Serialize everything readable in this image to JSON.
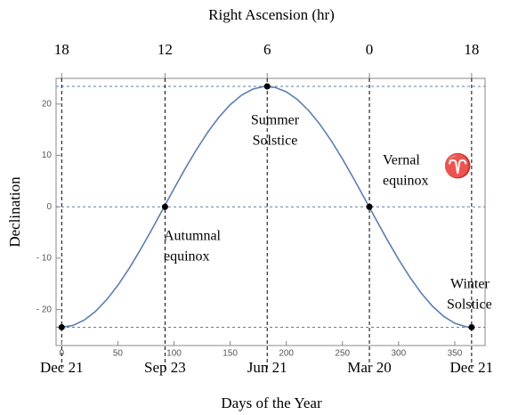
{
  "chart_data": {
    "type": "line",
    "title": "Right Ascension (hr)",
    "xlabel": "Days of the Year",
    "ylabel": "Declination",
    "xlim": [
      -5,
      377
    ],
    "ylim": [
      -27,
      25
    ],
    "xticks": [
      0,
      50,
      100,
      150,
      200,
      250,
      300,
      350
    ],
    "yticks": [
      {
        "value": -20,
        "label": "- 20"
      },
      {
        "value": -10,
        "label": "- 10"
      },
      0,
      10,
      20
    ],
    "x2ticks": [
      {
        "value": 0,
        "label": "18"
      },
      {
        "value": 92,
        "label": "12"
      },
      {
        "value": 183,
        "label": "6"
      },
      {
        "value": 274,
        "label": "0"
      },
      {
        "value": 365,
        "label": "18"
      }
    ],
    "date_ticks": [
      {
        "value": 0,
        "label": "Dec 21"
      },
      {
        "value": 92,
        "label": "Sep 23"
      },
      {
        "value": 183,
        "label": "Jun 21"
      },
      {
        "value": 274,
        "label": "Mar 20"
      },
      {
        "value": 365,
        "label": "Dec 21"
      }
    ],
    "hlines": [
      23.44,
      0,
      -23.44
    ],
    "series": [
      {
        "color": "#5a7fb5",
        "x": [
          0,
          10,
          20,
          30,
          40,
          50,
          60,
          70,
          80,
          90,
          100,
          110,
          120,
          130,
          140,
          150,
          160,
          170,
          180,
          190,
          200,
          210,
          220,
          230,
          240,
          250,
          260,
          270,
          280,
          290,
          300,
          310,
          320,
          330,
          340,
          350,
          360,
          365
        ],
        "values": [
          -23.44,
          -23.09,
          -22.06,
          -20.38,
          -18.09,
          -15.28,
          -12.01,
          -8.38,
          -4.51,
          -0.5,
          3.52,
          7.44,
          11.13,
          14.5,
          17.44,
          19.87,
          21.7,
          22.9,
          23.42,
          23.24,
          22.38,
          20.86,
          18.72,
          16.02,
          12.87,
          9.32,
          5.5,
          1.51,
          -2.52,
          -6.47,
          -10.24,
          -13.69,
          -16.75,
          -19.31,
          -21.3,
          -22.66,
          -23.35,
          -23.44
        ]
      }
    ],
    "points": {
      "color": "#000000",
      "x": [
        0,
        92,
        183,
        274,
        365
      ],
      "values": [
        -23.44,
        0,
        23.44,
        0,
        -23.44
      ]
    },
    "annotations": [
      {
        "lines": [
          "Summer",
          "Solstice"
        ]
      },
      {
        "lines": [
          "Vernal",
          "equinox"
        ]
      },
      {
        "lines": [
          "♈"
        ]
      },
      {
        "lines": [
          "Autumnal",
          "equinox"
        ]
      },
      {
        "lines": [
          "Winter",
          "Solstice"
        ]
      }
    ]
  }
}
